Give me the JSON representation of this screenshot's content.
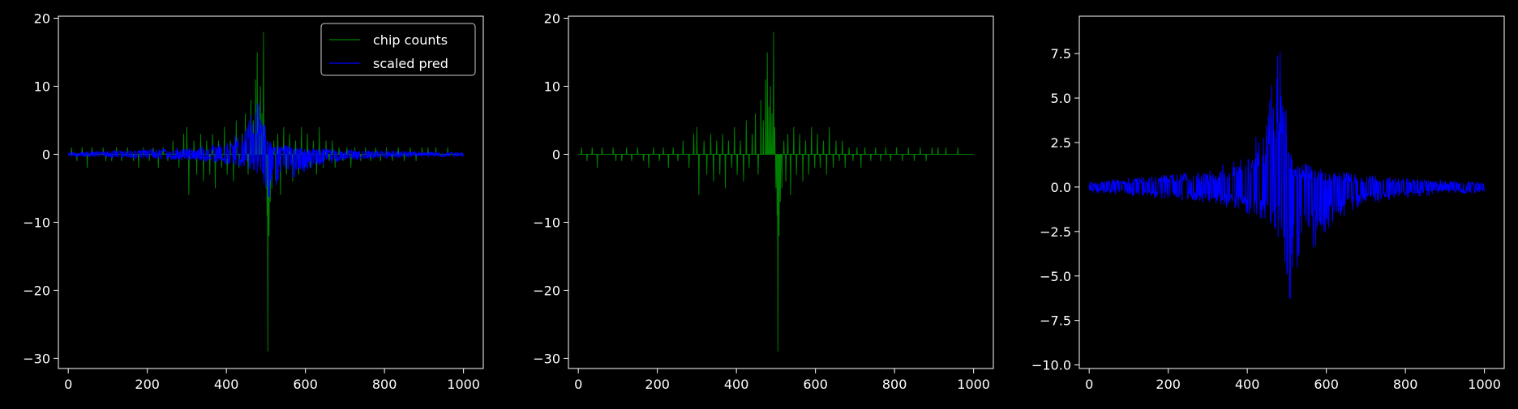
{
  "figure": {
    "background": "#000000",
    "foreground": "#ffffff"
  },
  "chart_data": [
    {
      "type": "line",
      "title": "",
      "xlabel": "",
      "ylabel": "",
      "xlim": [
        -25,
        1050
      ],
      "ylim": [
        -31.5,
        20.3
      ],
      "xticks": [
        0,
        200,
        400,
        600,
        800,
        1000
      ],
      "xtick_labels": [
        "0",
        "200",
        "400",
        "600",
        "800",
        "1000"
      ],
      "yticks": [
        -30,
        -20,
        -10,
        0,
        10,
        20
      ],
      "ytick_labels": [
        "−30",
        "−20",
        "−10",
        "0",
        "10",
        "20"
      ],
      "grid": false,
      "legend": {
        "placement": "upper-right",
        "entries": [
          "chip counts",
          "scaled pred"
        ]
      },
      "series": [
        {
          "name": "chip counts",
          "color": "#008000",
          "kind": "sparse_counts",
          "x_range": [
            0,
            1000
          ],
          "baseline": 0,
          "spikes": [
            [
              8,
              1
            ],
            [
              22,
              -1
            ],
            [
              35,
              1
            ],
            [
              48,
              -2
            ],
            [
              60,
              1
            ],
            [
              88,
              1
            ],
            [
              95,
              -1
            ],
            [
              110,
              -1
            ],
            [
              122,
              1
            ],
            [
              135,
              -1
            ],
            [
              150,
              1
            ],
            [
              165,
              -1
            ],
            [
              178,
              -2
            ],
            [
              190,
              1
            ],
            [
              205,
              -1
            ],
            [
              215,
              1
            ],
            [
              228,
              -2
            ],
            [
              240,
              1
            ],
            [
              252,
              -1
            ],
            [
              265,
              2
            ],
            [
              280,
              -2
            ],
            [
              292,
              3
            ],
            [
              300,
              4
            ],
            [
              305,
              -6
            ],
            [
              318,
              2
            ],
            [
              325,
              -3
            ],
            [
              335,
              3
            ],
            [
              342,
              -4
            ],
            [
              350,
              2
            ],
            [
              358,
              -3
            ],
            [
              365,
              3
            ],
            [
              372,
              -5
            ],
            [
              380,
              2
            ],
            [
              388,
              -2
            ],
            [
              395,
              4
            ],
            [
              402,
              -3
            ],
            [
              410,
              2
            ],
            [
              418,
              -4
            ],
            [
              425,
              5
            ],
            [
              432,
              -2
            ],
            [
              440,
              3
            ],
            [
              448,
              6
            ],
            [
              455,
              -3
            ],
            [
              462,
              8
            ],
            [
              468,
              5
            ],
            [
              474,
              11
            ],
            [
              478,
              15
            ],
            [
              482,
              7
            ],
            [
              486,
              10
            ],
            [
              490,
              6
            ],
            [
              494,
              18
            ],
            [
              497,
              4
            ],
            [
              500,
              -5
            ],
            [
              503,
              -9
            ],
            [
              505,
              -29
            ],
            [
              508,
              -12
            ],
            [
              511,
              -7
            ],
            [
              515,
              -5
            ],
            [
              520,
              2
            ],
            [
              525,
              -4
            ],
            [
              530,
              3
            ],
            [
              537,
              -6
            ],
            [
              545,
              4
            ],
            [
              552,
              -3
            ],
            [
              560,
              3
            ],
            [
              568,
              -4
            ],
            [
              575,
              2
            ],
            [
              583,
              -3
            ],
            [
              590,
              4
            ],
            [
              598,
              -2
            ],
            [
              605,
              3
            ],
            [
              612,
              -2
            ],
            [
              620,
              2
            ],
            [
              628,
              -3
            ],
            [
              635,
              4
            ],
            [
              645,
              -2
            ],
            [
              652,
              2
            ],
            [
              660,
              -1
            ],
            [
              668,
              2
            ],
            [
              675,
              -2
            ],
            [
              685,
              1
            ],
            [
              695,
              -1
            ],
            [
              705,
              1
            ],
            [
              715,
              -2
            ],
            [
              725,
              1
            ],
            [
              740,
              -1
            ],
            [
              752,
              1
            ],
            [
              765,
              -1
            ],
            [
              778,
              1
            ],
            [
              790,
              -1
            ],
            [
              805,
              1
            ],
            [
              820,
              -1
            ],
            [
              835,
              1
            ],
            [
              850,
              -1
            ],
            [
              865,
              1
            ],
            [
              880,
              -1
            ],
            [
              895,
              1
            ],
            [
              910,
              1
            ],
            [
              930,
              1
            ],
            [
              960,
              1
            ]
          ]
        },
        {
          "name": "scaled pred",
          "color": "#0000ff",
          "kind": "dense_noise",
          "x_range": [
            0,
            1000
          ],
          "upper_envelope": [
            [
              0,
              0.3
            ],
            [
              100,
              0.5
            ],
            [
              300,
              0.9
            ],
            [
              400,
              2.0
            ],
            [
              450,
              4.0
            ],
            [
              480,
              9.0
            ],
            [
              500,
              4.0
            ],
            [
              520,
              1.5
            ],
            [
              600,
              1.0
            ],
            [
              700,
              0.7
            ],
            [
              800,
              0.5
            ],
            [
              1000,
              0.3
            ]
          ],
          "lower_envelope": [
            [
              0,
              -0.3
            ],
            [
              100,
              -0.5
            ],
            [
              300,
              -0.9
            ],
            [
              400,
              -1.5
            ],
            [
              450,
              -2.0
            ],
            [
              480,
              -3.0
            ],
            [
              500,
              -9.0
            ],
            [
              520,
              -5.0
            ],
            [
              600,
              -2.5
            ],
            [
              700,
              -1.0
            ],
            [
              800,
              -0.6
            ],
            [
              1000,
              -0.3
            ]
          ]
        }
      ]
    },
    {
      "type": "line",
      "title": "",
      "xlabel": "",
      "ylabel": "",
      "xlim": [
        -25,
        1050
      ],
      "ylim": [
        -31.5,
        20.3
      ],
      "xticks": [
        0,
        200,
        400,
        600,
        800,
        1000
      ],
      "xtick_labels": [
        "0",
        "200",
        "400",
        "600",
        "800",
        "1000"
      ],
      "yticks": [
        -30,
        -20,
        -10,
        0,
        10,
        20
      ],
      "ytick_labels": [
        "−30",
        "−20",
        "−10",
        "0",
        "10",
        "20"
      ],
      "grid": false,
      "series": [
        {
          "ref": "chip counts",
          "color": "#008000"
        }
      ]
    },
    {
      "type": "line",
      "title": "",
      "xlabel": "",
      "ylabel": "",
      "xlim": [
        -25,
        1050
      ],
      "ylim": [
        -10.2,
        9.6
      ],
      "xticks": [
        0,
        200,
        400,
        600,
        800,
        1000
      ],
      "xtick_labels": [
        "0",
        "200",
        "400",
        "600",
        "800",
        "1000"
      ],
      "yticks": [
        -10.0,
        -7.5,
        -5.0,
        -2.5,
        0.0,
        2.5,
        5.0,
        7.5
      ],
      "ytick_labels": [
        "−10.0",
        "−7.5",
        "−5.0",
        "−2.5",
        "0.0",
        "2.5",
        "5.0",
        "7.5"
      ],
      "grid": false,
      "series": [
        {
          "ref": "scaled pred",
          "color": "#0000ff"
        }
      ]
    }
  ]
}
